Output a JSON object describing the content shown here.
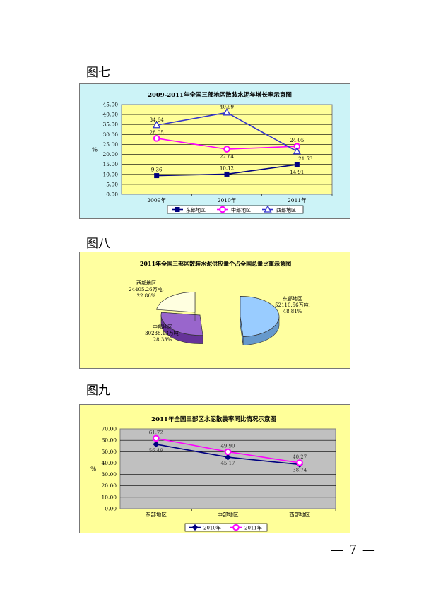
{
  "figures": {
    "fig7_label": "图七",
    "fig8_label": "图八",
    "fig9_label": "图九"
  },
  "page_number": "— 7 —",
  "colors": {
    "fig7_panel": "#ccf3f7",
    "fig7_plot": "#ffff99",
    "fig8_panel": "#ffffa0",
    "fig9_panel": "#ffff99",
    "fig9_plot": "#c0c0c0",
    "east": "#000080",
    "central": "#ff00ff",
    "west": "#3333cc"
  },
  "chart_data": [
    {
      "type": "line",
      "title": "2009-2011年全国三部地区散装水泥年增长率示意图",
      "ylabel": "%",
      "ylim": [
        0,
        45
      ],
      "yticks": [
        "0.00",
        "5.00",
        "10.00",
        "15.00",
        "20.00",
        "25.00",
        "30.00",
        "35.00",
        "40.00",
        "45.00"
      ],
      "categories": [
        "2009年",
        "2010年",
        "2011年"
      ],
      "grid": true,
      "legend": "bottom",
      "series": [
        {
          "name": "东部地区",
          "values": [
            9.36,
            10.12,
            14.91
          ],
          "labels": [
            "9.36",
            "10.12",
            "14.91"
          ],
          "marker": "square"
        },
        {
          "name": "中部地区",
          "values": [
            28.05,
            22.64,
            24.05
          ],
          "labels": [
            "28.05",
            "22.64",
            "24.05"
          ],
          "marker": "circle"
        },
        {
          "name": "西部地区",
          "values": [
            34.64,
            40.99,
            21.53
          ],
          "labels": [
            "34.64",
            "40.99",
            "21.53"
          ],
          "marker": "triangle"
        }
      ]
    },
    {
      "type": "pie",
      "title": "2011年全国三部区散装水泥供应量个占全国总量比重示意图",
      "slices": [
        {
          "name": "东部地区",
          "value": 52110.56,
          "value_text": "52110.56万吨,",
          "percent": "48.81%"
        },
        {
          "name": "中部地区",
          "value": 30238.13,
          "value_text": "30238.13万吨,",
          "percent": "28.33%"
        },
        {
          "name": "西部地区",
          "value": 24405.26,
          "value_text": "24405.26万吨,",
          "percent": "22.86%"
        }
      ]
    },
    {
      "type": "line",
      "title": "2011年全国三部区水泥散装率同比情况示意图",
      "ylabel": "%",
      "ylim": [
        0,
        70
      ],
      "yticks": [
        "0.00",
        "10.00",
        "20.00",
        "30.00",
        "40.00",
        "50.00",
        "60.00",
        "70.00"
      ],
      "categories": [
        "东部地区",
        "中部地区",
        "西部地区"
      ],
      "grid": true,
      "legend": "bottom",
      "series": [
        {
          "name": "2010年",
          "values": [
            56.49,
            45.17,
            38.74
          ],
          "labels": [
            "56.49",
            "45.17",
            "38.74"
          ],
          "marker": "diamond"
        },
        {
          "name": "2011年",
          "values": [
            61.72,
            49.9,
            40.27
          ],
          "labels": [
            "61.72",
            "49.90",
            "40.27"
          ],
          "marker": "circle"
        }
      ]
    }
  ]
}
